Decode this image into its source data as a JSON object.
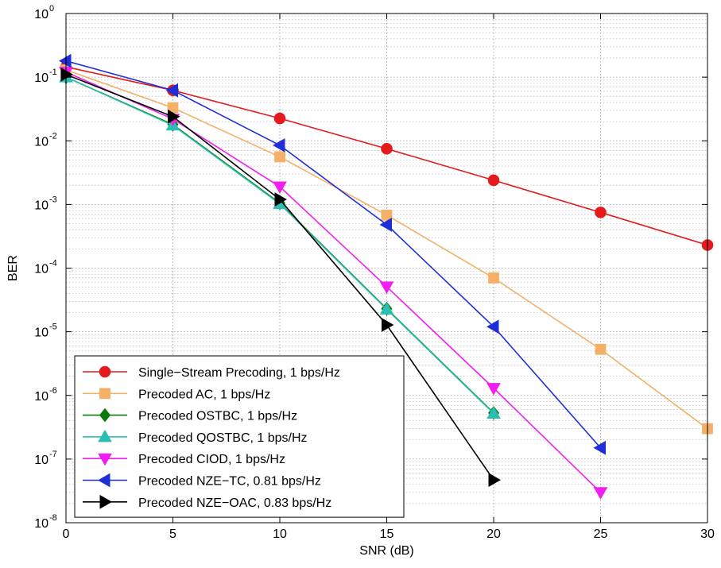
{
  "chart_data": {
    "type": "line",
    "title": "",
    "xlabel": "SNR (dB)",
    "ylabel": "BER",
    "xlim": [
      0,
      30
    ],
    "ylim": [
      1e-08,
      1
    ],
    "yscale": "log",
    "grid": true,
    "legend_position": "bottom-left",
    "x_ticks": [
      "0",
      "5",
      "10",
      "15",
      "20",
      "25",
      "30"
    ],
    "y_tick_exponents": [
      "0",
      "-1",
      "-2",
      "-3",
      "-4",
      "-5",
      "-6",
      "-7",
      "-8"
    ],
    "y_tick_base": "10",
    "series": [
      {
        "name": "Single−Stream Precoding, 1 bps/Hz",
        "color": "#e41a1c",
        "marker": "circle",
        "x": [
          0,
          5,
          10,
          15,
          20,
          25,
          30
        ],
        "y": [
          0.145,
          0.062,
          0.0225,
          0.0075,
          0.0024,
          0.00075,
          0.00023
        ]
      },
      {
        "name": "Precoded AC, 1 bps/Hz",
        "color": "#f5b067",
        "marker": "square",
        "x": [
          0,
          5,
          10,
          15,
          20,
          25,
          30
        ],
        "y": [
          0.13,
          0.033,
          0.0056,
          0.00068,
          7e-05,
          5.3e-06,
          3e-07
        ]
      },
      {
        "name": "Precoded OSTBC, 1 bps/Hz",
        "color": "#0b7a0b",
        "marker": "diamond",
        "x": [
          0,
          5,
          10,
          15,
          20
        ],
        "y": [
          0.1,
          0.018,
          0.00105,
          2.3e-05,
          5.3e-07
        ]
      },
      {
        "name": "Precoded QOSTBC, 1 bps/Hz",
        "color": "#2bbfb3",
        "marker": "triangle-up",
        "x": [
          0,
          5,
          10,
          15,
          20
        ],
        "y": [
          0.1,
          0.0175,
          0.00102,
          2.25e-05,
          5.2e-07
        ]
      },
      {
        "name": "Precoded CIOD, 1 bps/Hz",
        "color": "#f01ef0",
        "marker": "triangle-down",
        "x": [
          0,
          5,
          10,
          15,
          20,
          25
        ],
        "y": [
          0.12,
          0.022,
          0.0019,
          5.1e-05,
          1.3e-06,
          3e-08
        ]
      },
      {
        "name": "Precoded NZE−TC, 0.81 bps/Hz",
        "color": "#1f2fd8",
        "marker": "triangle-left",
        "x": [
          0,
          5,
          10,
          15,
          20,
          25
        ],
        "y": [
          0.18,
          0.062,
          0.0085,
          0.00048,
          1.2e-05,
          1.5e-07
        ]
      },
      {
        "name": "Precoded NZE−OAC, 0.83 bps/Hz",
        "color": "#000000",
        "marker": "triangle-right",
        "x": [
          0,
          5,
          10,
          15,
          20
        ],
        "y": [
          0.11,
          0.024,
          0.0012,
          1.28e-05,
          4.7e-08
        ]
      }
    ]
  }
}
